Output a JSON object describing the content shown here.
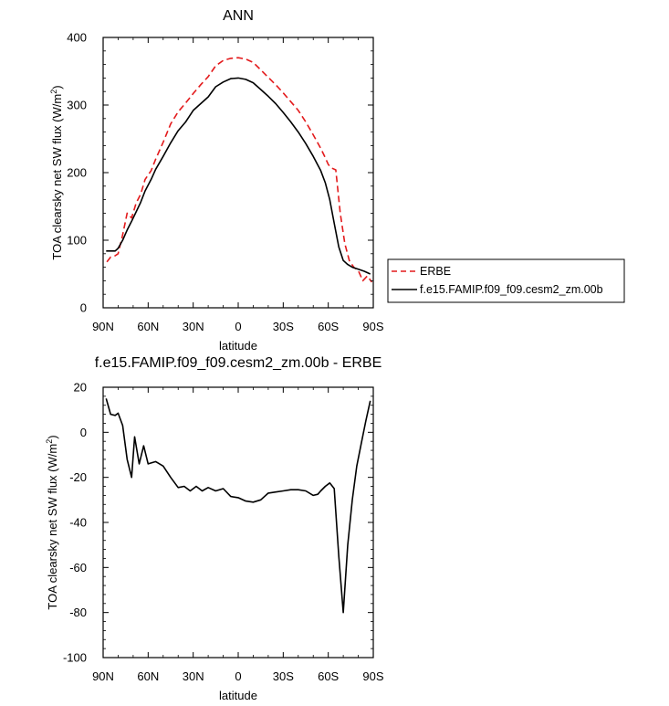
{
  "chart_data": [
    {
      "type": "line",
      "title": "ANN",
      "xlabel": "latitude",
      "ylabel": "TOA clearsky net SW flux (W/m",
      "ylabel_sup": "2",
      "ylabel_end": ")",
      "xlim": [
        90,
        -90
      ],
      "ylim": [
        0,
        400
      ],
      "xticks": [
        90,
        60,
        30,
        0,
        -30,
        -60,
        -90
      ],
      "xtick_labels": [
        "90N",
        "60N",
        "30N",
        "0",
        "30S",
        "60S",
        "90S"
      ],
      "yticks": [
        0,
        100,
        200,
        300,
        400
      ],
      "ytick_labels": [
        "0",
        "100",
        "200",
        "300",
        "400"
      ],
      "legend": {
        "placement": "right",
        "entries": [
          "ERBE",
          "f.e15.FAMIP.f09_f09.cesm2_zm.00b"
        ]
      },
      "series": [
        {
          "name": "ERBE",
          "color": "#e31a1c",
          "dash": "dashed",
          "x": [
            87.5,
            85,
            82,
            80,
            77,
            74,
            71,
            68,
            65,
            62,
            58,
            55,
            50,
            45,
            40,
            35,
            30,
            25,
            20,
            15,
            10,
            5,
            0,
            -5,
            -10,
            -15,
            -20,
            -25,
            -30,
            -35,
            -40,
            -45,
            -50,
            -55,
            -58,
            -60,
            -62,
            -65,
            -68,
            -71,
            -74,
            -77,
            -80,
            -83,
            -86,
            -89
          ],
          "y": [
            68,
            75,
            77,
            80,
            108,
            140,
            133,
            155,
            168,
            190,
            203,
            220,
            245,
            272,
            290,
            303,
            317,
            330,
            342,
            358,
            366,
            369,
            370,
            368,
            363,
            352,
            341,
            330,
            318,
            305,
            292,
            275,
            256,
            236,
            222,
            212,
            207,
            204,
            140,
            95,
            70,
            60,
            55,
            40,
            47,
            38
          ]
        },
        {
          "name": "f.e15.FAMIP.f09_f09.cesm2_zm.00b",
          "color": "#000000",
          "dash": "solid",
          "x": [
            88,
            85,
            82,
            80,
            77,
            74,
            71,
            68,
            65,
            62,
            58,
            55,
            50,
            45,
            40,
            35,
            30,
            25,
            20,
            15,
            10,
            5,
            0,
            -5,
            -10,
            -15,
            -20,
            -25,
            -30,
            -35,
            -40,
            -45,
            -50,
            -55,
            -58,
            -61,
            -64,
            -67,
            -70,
            -73,
            -76,
            -80,
            -84,
            -88
          ],
          "y": [
            84,
            84,
            84,
            88,
            100,
            115,
            128,
            142,
            156,
            173,
            190,
            205,
            224,
            244,
            262,
            275,
            292,
            302,
            312,
            327,
            334,
            339,
            340,
            338,
            333,
            323,
            313,
            302,
            289,
            275,
            260,
            243,
            224,
            203,
            185,
            160,
            125,
            90,
            70,
            64,
            60,
            57,
            54,
            50
          ]
        }
      ]
    },
    {
      "type": "line",
      "title": "f.e15.FAMIP.f09_f09.cesm2_zm.00b - ERBE",
      "xlabel": "latitude",
      "ylabel": "TOA clearsky net SW flux (W/m",
      "ylabel_sup": "2",
      "ylabel_end": ")",
      "xlim": [
        90,
        -90
      ],
      "ylim": [
        -100,
        20
      ],
      "xticks": [
        90,
        60,
        30,
        0,
        -30,
        -60,
        -90
      ],
      "xtick_labels": [
        "90N",
        "60N",
        "30N",
        "0",
        "30S",
        "60S",
        "90S"
      ],
      "yticks": [
        -100,
        -80,
        -60,
        -40,
        -20,
        0,
        20
      ],
      "ytick_labels": [
        "-100",
        "-80",
        "-60",
        "-40",
        "-20",
        "0",
        "20"
      ],
      "series": [
        {
          "name": "f.e15.FAMIP.f09_f09.cesm2_zm.00b - ERBE",
          "color": "#000000",
          "dash": "solid",
          "x": [
            88,
            85,
            82,
            80,
            77,
            74,
            71,
            69,
            66,
            63,
            60,
            55,
            50,
            45,
            40,
            36,
            32,
            28,
            24,
            20,
            15,
            10,
            5,
            0,
            -5,
            -10,
            -15,
            -20,
            -25,
            -30,
            -35,
            -40,
            -45,
            -50,
            -53,
            -55,
            -58,
            -61,
            -64,
            -67,
            -70,
            -73,
            -76,
            -79,
            -82,
            -85,
            -88
          ],
          "y": [
            15,
            8,
            7.5,
            8.5,
            3,
            -12,
            -20,
            -2,
            -14,
            -6,
            -14,
            -13,
            -15,
            -20,
            -24.5,
            -24,
            -26,
            -24,
            -26,
            -24.5,
            -26,
            -25,
            -28.5,
            -29,
            -30.5,
            -31,
            -30,
            -27,
            -26.5,
            -26,
            -25.5,
            -25.5,
            -26,
            -28,
            -27.5,
            -26,
            -24,
            -22.5,
            -25,
            -55,
            -80,
            -50,
            -30,
            -15,
            -5,
            5,
            14
          ]
        }
      ]
    }
  ]
}
